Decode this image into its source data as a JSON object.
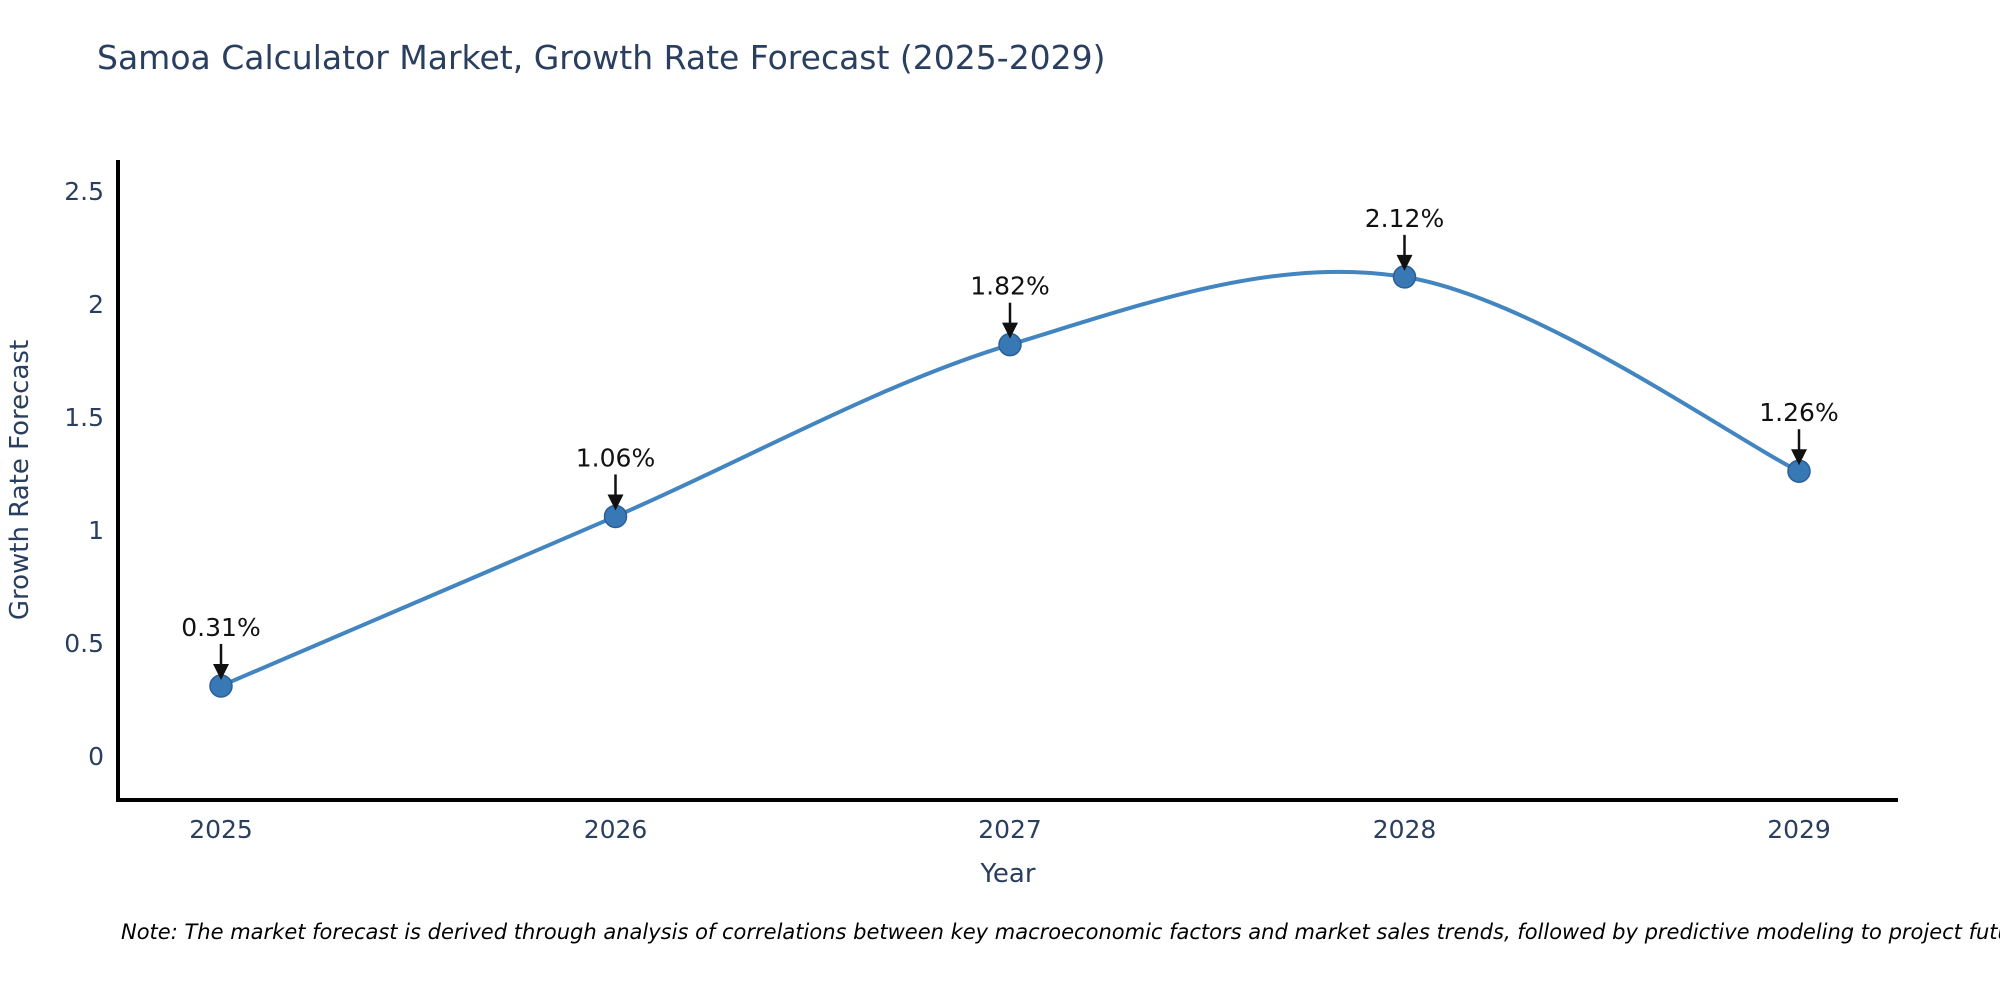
{
  "chart_data": {
    "type": "line",
    "title": "Samoa Calculator Market, Growth Rate Forecast (2025-2029)",
    "xlabel": "Year",
    "ylabel": "Growth Rate Forecast",
    "x": [
      2025,
      2026,
      2027,
      2028,
      2029
    ],
    "x_tick_labels": [
      "2025",
      "2026",
      "2027",
      "2028",
      "2029"
    ],
    "series": [
      {
        "name": "Growth Rate Forecast",
        "values": [
          0.31,
          1.06,
          1.82,
          2.12,
          1.26
        ],
        "point_labels": [
          "0.31%",
          "1.06%",
          "1.82%",
          "2.12%",
          "1.26%"
        ]
      }
    ],
    "y_ticks": [
      0,
      0.5,
      1,
      1.5,
      2,
      2.5
    ],
    "y_tick_labels": [
      "0",
      "0.5",
      "1",
      "1.5",
      "2",
      "2.5"
    ],
    "ylim": [
      -0.2,
      2.65
    ],
    "grid": false,
    "legend_position": "none",
    "line_shape": "spline",
    "colors": {
      "line": "#4285c0",
      "marker_fill": "#3878b4",
      "marker_edge": "#2b5f98",
      "axis_line": "#000000",
      "title_text": "#2a3f5f",
      "tick_text": "#2a3f5f",
      "annotation": "#111111"
    }
  },
  "note": "Note: The market forecast is derived through analysis of correlations between key macroeconomic factors and market sales trends, followed by predictive modeling to project future sales"
}
